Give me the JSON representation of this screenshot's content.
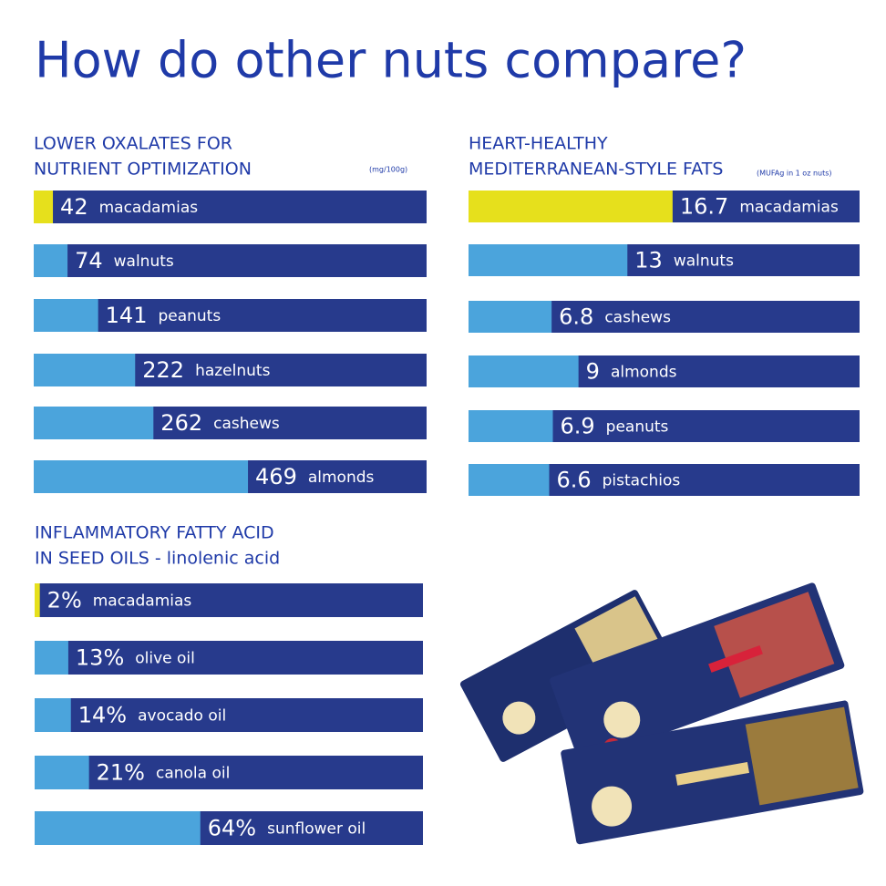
{
  "title": "How do other nuts compare?",
  "chart_data": [
    {
      "type": "bar",
      "orientation": "horizontal",
      "title_lines": [
        "LOWER OXALATES FOR",
        "NUTRIENT OPTIMIZATION"
      ],
      "unit": "(mg/100g)",
      "categories": [
        "macadamias",
        "walnuts",
        "peanuts",
        "hazelnuts",
        "cashews",
        "almonds"
      ],
      "values": [
        42,
        74,
        141,
        222,
        262,
        469
      ],
      "colors": [
        "#e6e01c",
        "#4ba4dc",
        "#4ba4dc",
        "#4ba4dc",
        "#4ba4dc",
        "#4ba4dc"
      ],
      "track_color": "#273a8c",
      "xlim": [
        0,
        860
      ]
    },
    {
      "type": "bar",
      "orientation": "horizontal",
      "title_lines": [
        "HEART-HEALTHY",
        "MEDITERRANEAN-STYLE FATS"
      ],
      "unit": "(MUFAg in 1 oz nuts)",
      "categories": [
        "macadamias",
        "walnuts",
        "cashews",
        "almonds",
        "peanuts",
        "pistachios"
      ],
      "values": [
        16.7,
        13,
        6.8,
        9,
        6.9,
        6.6
      ],
      "colors": [
        "#e6e01c",
        "#4ba4dc",
        "#4ba4dc",
        "#4ba4dc",
        "#4ba4dc",
        "#4ba4dc"
      ],
      "track_color": "#273a8c",
      "xlim": [
        0,
        32
      ]
    },
    {
      "type": "bar",
      "orientation": "horizontal",
      "title_lines": [
        "INFLAMMATORY FATTY ACID",
        "IN SEED OILS - linolenic acid"
      ],
      "categories": [
        "macadamias",
        "olive oil",
        "avocado oil",
        "canola oil",
        "sunflower oil"
      ],
      "values": [
        2,
        13,
        14,
        21,
        64
      ],
      "value_labels": [
        "2%",
        "13%",
        "14%",
        "21%",
        "64%"
      ],
      "colors": [
        "#e6e01c",
        "#4ba4dc",
        "#4ba4dc",
        "#4ba4dc",
        "#4ba4dc"
      ],
      "track_color": "#273a8c",
      "xlim": [
        0,
        150
      ]
    }
  ]
}
